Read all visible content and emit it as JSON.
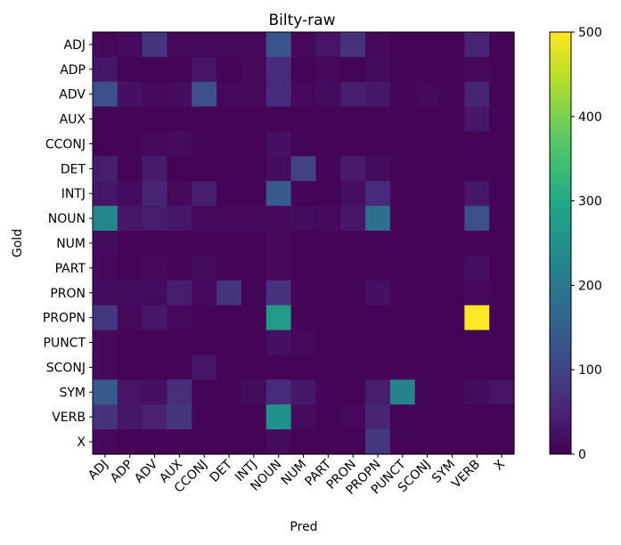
{
  "chart_data": {
    "type": "heatmap",
    "title": "Bilty-raw",
    "xlabel": "Pred",
    "ylabel": "Gold",
    "categories": [
      "ADJ",
      "ADP",
      "ADV",
      "AUX",
      "CCONJ",
      "DET",
      "INTJ",
      "NOUN",
      "NUM",
      "PART",
      "PRON",
      "PROPN",
      "PUNCT",
      "SCONJ",
      "SYM",
      "VERB",
      "X"
    ],
    "x": [
      "ADJ",
      "ADP",
      "ADV",
      "AUX",
      "CCONJ",
      "DET",
      "INTJ",
      "NOUN",
      "NUM",
      "PART",
      "PRON",
      "PROPN",
      "PUNCT",
      "SCONJ",
      "SYM",
      "VERB",
      "X"
    ],
    "y": [
      "ADJ",
      "ADP",
      "ADV",
      "AUX",
      "CCONJ",
      "DET",
      "INTJ",
      "NOUN",
      "NUM",
      "PART",
      "PRON",
      "PROPN",
      "PUNCT",
      "SCONJ",
      "SYM",
      "VERB",
      "X"
    ],
    "z": [
      [
        10,
        15,
        75,
        10,
        10,
        10,
        10,
        130,
        10,
        25,
        70,
        10,
        5,
        5,
        5,
        50,
        5
      ],
      [
        30,
        5,
        5,
        5,
        25,
        5,
        10,
        60,
        5,
        10,
        5,
        15,
        5,
        5,
        5,
        10,
        5
      ],
      [
        120,
        20,
        10,
        15,
        120,
        10,
        10,
        60,
        10,
        15,
        40,
        30,
        5,
        10,
        5,
        50,
        5
      ],
      [
        5,
        5,
        5,
        5,
        5,
        5,
        5,
        5,
        5,
        5,
        5,
        5,
        5,
        5,
        5,
        30,
        5
      ],
      [
        5,
        5,
        10,
        15,
        5,
        5,
        5,
        20,
        5,
        5,
        5,
        5,
        5,
        5,
        5,
        5,
        5
      ],
      [
        40,
        5,
        35,
        5,
        5,
        5,
        5,
        15,
        95,
        5,
        35,
        15,
        5,
        5,
        5,
        5,
        5
      ],
      [
        30,
        15,
        50,
        10,
        40,
        5,
        5,
        140,
        5,
        5,
        20,
        60,
        5,
        5,
        5,
        30,
        5
      ],
      [
        230,
        30,
        40,
        30,
        10,
        10,
        10,
        10,
        15,
        10,
        30,
        180,
        5,
        5,
        5,
        120,
        5
      ],
      [
        15,
        5,
        5,
        5,
        5,
        5,
        5,
        10,
        5,
        5,
        5,
        5,
        5,
        5,
        5,
        5,
        5
      ],
      [
        10,
        5,
        10,
        5,
        15,
        5,
        5,
        10,
        5,
        5,
        5,
        5,
        5,
        5,
        5,
        20,
        5
      ],
      [
        15,
        15,
        15,
        40,
        10,
        75,
        5,
        70,
        5,
        5,
        5,
        20,
        5,
        5,
        5,
        10,
        5
      ],
      [
        80,
        10,
        30,
        10,
        5,
        5,
        5,
        270,
        5,
        5,
        5,
        5,
        5,
        5,
        5,
        500,
        5
      ],
      [
        10,
        5,
        5,
        5,
        5,
        5,
        5,
        20,
        10,
        5,
        5,
        5,
        5,
        5,
        5,
        5,
        5
      ],
      [
        10,
        5,
        5,
        5,
        25,
        5,
        5,
        5,
        5,
        5,
        5,
        5,
        5,
        5,
        5,
        5,
        5
      ],
      [
        140,
        25,
        20,
        65,
        5,
        5,
        15,
        60,
        30,
        5,
        5,
        40,
        220,
        5,
        5,
        15,
        25
      ],
      [
        70,
        30,
        45,
        75,
        5,
        5,
        5,
        250,
        15,
        5,
        10,
        50,
        5,
        5,
        5,
        5,
        5
      ],
      [
        10,
        5,
        5,
        5,
        5,
        5,
        5,
        15,
        5,
        5,
        5,
        80,
        5,
        5,
        5,
        5,
        5
      ]
    ],
    "zlim": [
      0,
      500
    ],
    "colorbar_ticks": [
      0,
      100,
      200,
      300,
      400,
      500
    ],
    "colormap": "viridis"
  }
}
